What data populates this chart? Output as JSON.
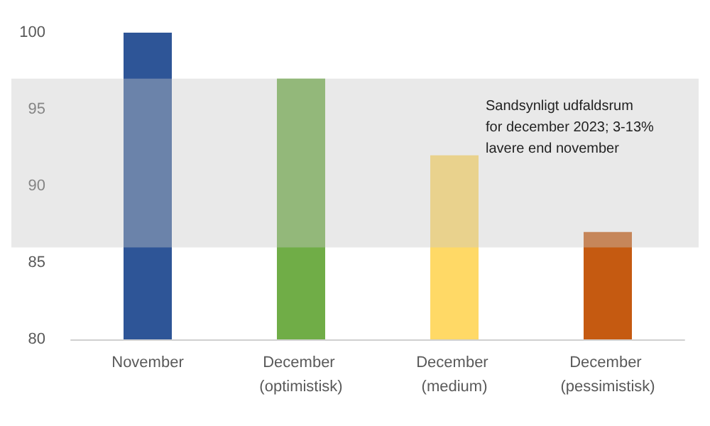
{
  "chart_data": {
    "type": "bar",
    "categories": [
      "November",
      "December (optimistisk)",
      "December (medium)",
      "December (pessimistisk)"
    ],
    "values": [
      100,
      97,
      92,
      87
    ],
    "colors": [
      "#2e5597",
      "#70ad47",
      "#ffd966",
      "#c55a11"
    ],
    "ylim": [
      80,
      100
    ],
    "yticks": [
      80,
      85,
      90,
      95,
      100
    ],
    "grid": false,
    "bands": [
      {
        "axis": "y",
        "from": 86,
        "to": 97,
        "label": "Sandsynligt udfaldsrum for december 2023; 3-13% lavere end november",
        "color": "#c8c8c8"
      }
    ]
  }
}
